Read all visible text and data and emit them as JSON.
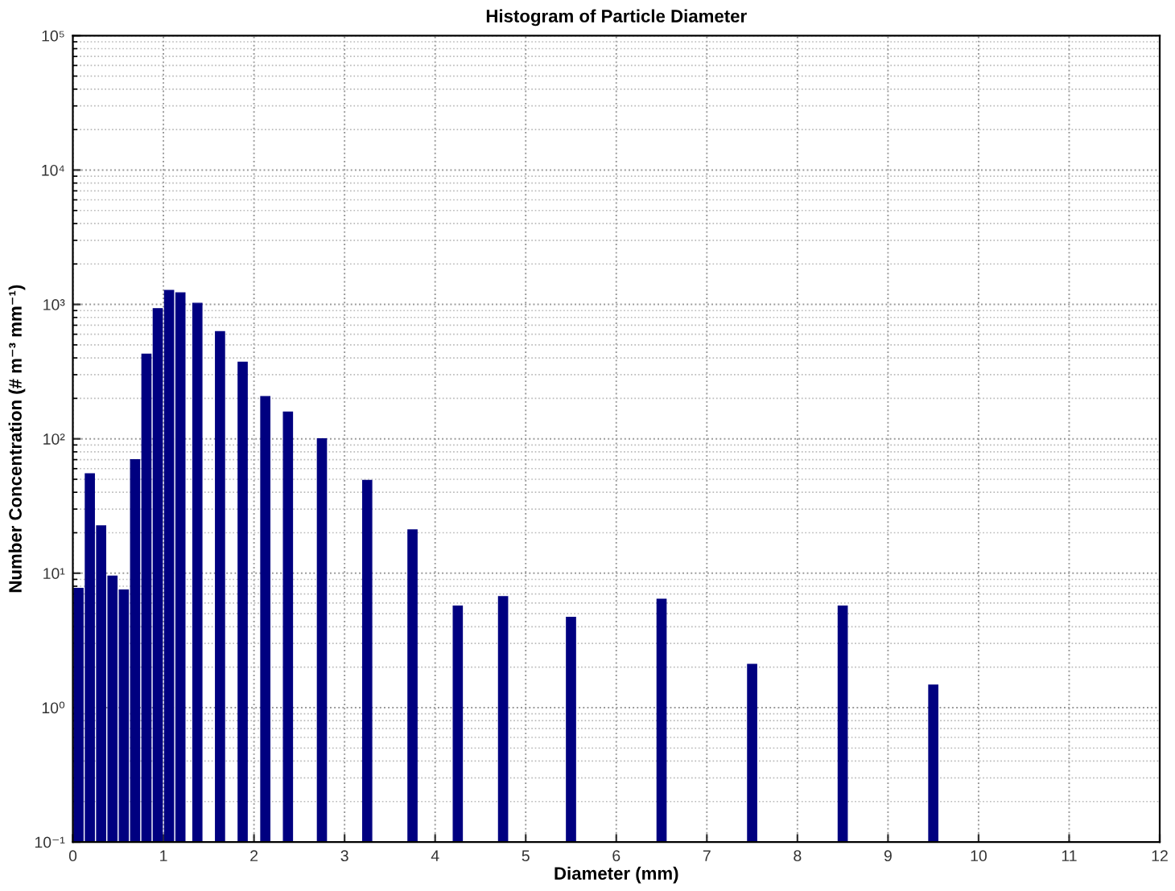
{
  "chart_data": {
    "type": "bar",
    "title": "Histogram of Particle Diameter",
    "xlabel": "Diameter (mm)",
    "ylabel": "Number Concentration (# m⁻³ mm⁻¹)",
    "x": [
      0.0625,
      0.1875,
      0.3125,
      0.4375,
      0.5625,
      0.6875,
      0.8125,
      0.9375,
      1.0625,
      1.1875,
      1.375,
      1.625,
      1.875,
      2.125,
      2.375,
      2.75,
      3.25,
      3.75,
      4.25,
      4.75,
      5.5,
      6.5,
      7.5,
      8.5,
      9.5
    ],
    "values": [
      7.7,
      55,
      22.5,
      9.5,
      7.5,
      70,
      427,
      930,
      1270,
      1220,
      1020,
      627,
      372,
      206,
      158,
      100,
      49,
      21,
      5.7,
      6.7,
      4.7,
      6.4,
      2.1,
      5.7,
      1.47
    ],
    "color": "#000080",
    "log": "y",
    "xlim": [
      0,
      12
    ],
    "xticks": [
      0,
      1,
      2,
      3,
      4,
      5,
      6,
      7,
      8,
      9,
      10,
      11,
      12
    ],
    "ylim": [
      0.1,
      100000
    ],
    "yticks": [
      {
        "value": 0.1,
        "label": "10⁻¹"
      },
      {
        "value": 1,
        "label": "10⁰"
      },
      {
        "value": 10,
        "label": "10¹"
      },
      {
        "value": 100,
        "label": "10²"
      },
      {
        "value": 1000,
        "label": "10³"
      },
      {
        "value": 10000,
        "label": "10⁴"
      },
      {
        "value": 100000,
        "label": "10⁵"
      }
    ],
    "grid": true
  }
}
